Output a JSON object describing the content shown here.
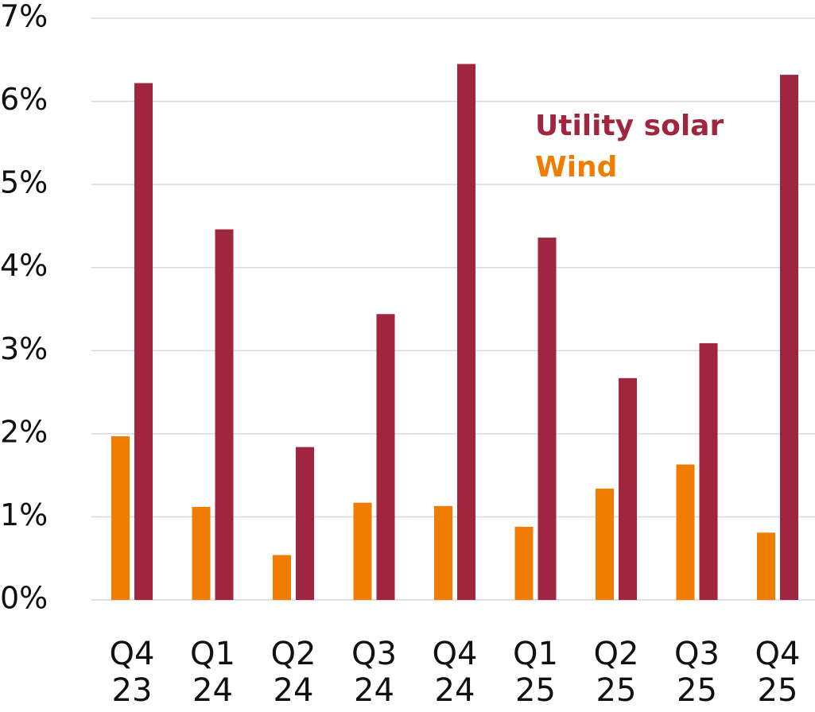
{
  "chart_data": {
    "type": "bar",
    "categories": [
      "Q4 23",
      "Q1 24",
      "Q2 24",
      "Q3 24",
      "Q4 24",
      "Q1 25",
      "Q2 25",
      "Q3 25",
      "Q4 25"
    ],
    "series": [
      {
        "name": "Wind",
        "color": "#f07c00",
        "values": [
          1.97,
          1.12,
          0.54,
          1.17,
          1.13,
          0.88,
          1.34,
          1.63,
          0.81
        ]
      },
      {
        "name": "Utility solar",
        "color": "#a0253f",
        "values": [
          6.22,
          4.46,
          1.84,
          3.44,
          6.45,
          4.36,
          2.67,
          3.09,
          6.32
        ]
      }
    ],
    "ylim": [
      0,
      7
    ],
    "yticks": [
      {
        "value": 0,
        "label": "0%"
      },
      {
        "value": 1,
        "label": "1%"
      },
      {
        "value": 2,
        "label": "2%"
      },
      {
        "value": 3,
        "label": "3%"
      },
      {
        "value": 4,
        "label": "4%"
      },
      {
        "value": 5,
        "label": "5%"
      },
      {
        "value": 6,
        "label": "6%"
      },
      {
        "value": 7,
        "label": "7%"
      }
    ],
    "grid": true
  }
}
